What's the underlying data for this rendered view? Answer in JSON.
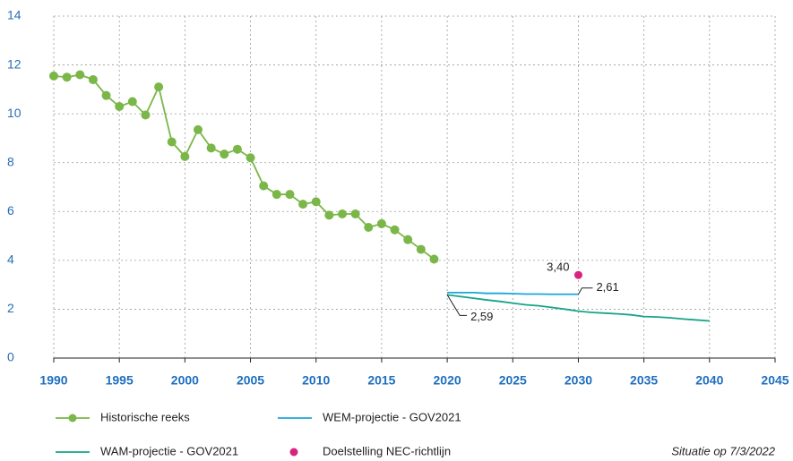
{
  "chart_data": {
    "type": "line",
    "xlim": [
      1990,
      2045
    ],
    "xticks": [
      1990,
      1995,
      2000,
      2005,
      2010,
      2015,
      2020,
      2025,
      2030,
      2035,
      2040,
      2045
    ],
    "ylim": [
      0,
      14
    ],
    "yticks": [
      0,
      2,
      4,
      6,
      8,
      10,
      12,
      14
    ],
    "grid": true,
    "legend": "bottom",
    "series": [
      {
        "name": "Historische reeks",
        "color": "#7ab648",
        "marker": "circle",
        "x": [
          1990,
          1991,
          1992,
          1993,
          1994,
          1995,
          1996,
          1997,
          1998,
          1999,
          2000,
          2001,
          2002,
          2003,
          2004,
          2005,
          2006,
          2007,
          2008,
          2009,
          2010,
          2011,
          2012,
          2013,
          2014,
          2015,
          2016,
          2017,
          2018,
          2019
        ],
        "values": [
          11.55,
          11.5,
          11.6,
          11.4,
          10.75,
          10.3,
          10.5,
          9.95,
          11.1,
          8.85,
          8.25,
          9.35,
          8.6,
          8.35,
          8.55,
          8.2,
          7.05,
          6.7,
          6.7,
          6.3,
          6.4,
          5.85,
          5.9,
          5.9,
          5.35,
          5.5,
          5.25,
          4.85,
          4.45,
          4.05
        ]
      },
      {
        "name": "WEM-projectie - GOV2021",
        "color": "#1ba6d9",
        "marker": "none",
        "x": [
          2020,
          2021,
          2022,
          2023,
          2024,
          2025,
          2026,
          2027,
          2028,
          2029,
          2030
        ],
        "values": [
          2.68,
          2.68,
          2.68,
          2.65,
          2.65,
          2.64,
          2.62,
          2.62,
          2.61,
          2.61,
          2.61
        ]
      },
      {
        "name": "WAM-projectie - GOV2021",
        "color": "#17a38a",
        "marker": "none",
        "x": [
          2020,
          2021,
          2022,
          2023,
          2024,
          2025,
          2026,
          2027,
          2028,
          2029,
          2030,
          2031,
          2032,
          2033,
          2034,
          2035,
          2036,
          2037,
          2038,
          2039,
          2040
        ],
        "values": [
          2.59,
          2.52,
          2.45,
          2.38,
          2.32,
          2.25,
          2.18,
          2.14,
          2.07,
          2.0,
          1.92,
          1.87,
          1.84,
          1.81,
          1.77,
          1.7,
          1.68,
          1.65,
          1.6,
          1.56,
          1.52
        ]
      },
      {
        "name": "Doelstelling NEC-richtlijn",
        "color": "#d6247f",
        "marker": "dot-only",
        "x": [
          2030
        ],
        "values": [
          3.4
        ],
        "value_labels": [
          "3,40"
        ]
      }
    ],
    "annotations": [
      {
        "text": "2,61",
        "x": 2030,
        "y": 2.61
      },
      {
        "text": "2,59",
        "x": 2020,
        "y": 2.59
      }
    ],
    "note": "Situatie op 7/3/2022"
  }
}
